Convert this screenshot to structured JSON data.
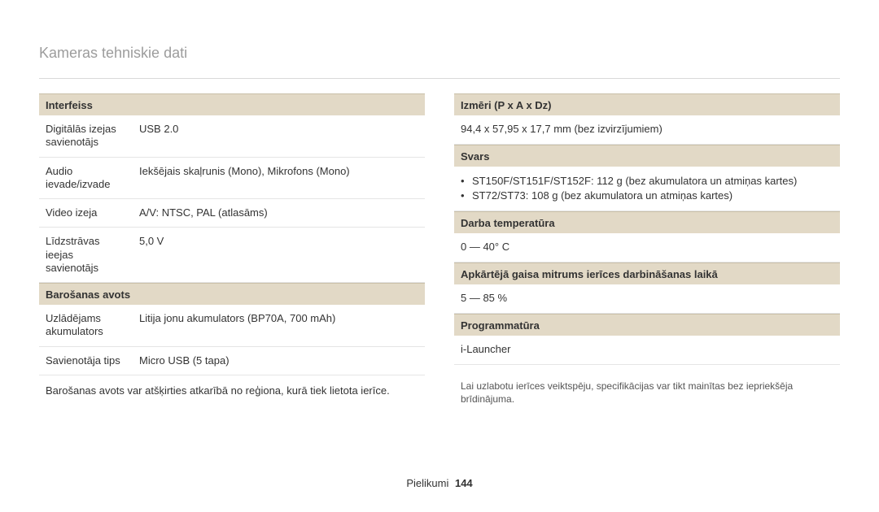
{
  "page": {
    "title": "Kameras tehniskie dati",
    "footer_label": "Pielikumi",
    "footer_page": "144"
  },
  "left": {
    "interface": {
      "header": "Interfeiss",
      "rows": [
        {
          "k": "Digitālās izejas savienotājs",
          "v": "USB 2.0"
        },
        {
          "k": "Audio ievade/izvade",
          "v": "Iekšējais skaļrunis (Mono), Mikrofons (Mono)"
        },
        {
          "k": "Video izeja",
          "v": "A/V: NTSC, PAL (atlasāms)"
        },
        {
          "k": "Līdzstrāvas ieejas savienotājs",
          "v": "5,0 V"
        }
      ]
    },
    "power": {
      "header": "Barošanas avots",
      "rows": [
        {
          "k": "Uzlādējams akumulators",
          "v": "Litija jonu akumulators (BP70A, 700 mAh)"
        },
        {
          "k": "Savienotāja tips",
          "v": "Micro USB (5 tapa)"
        }
      ],
      "note": "Barošanas avots var atšķirties atkarībā no reģiona, kurā tiek lietota ierīce."
    }
  },
  "right": {
    "dims": {
      "header": "Izmēri (P x A x Dz)",
      "value": "94,4 x 57,95 x 17,7 mm (bez izvirzījumiem)"
    },
    "weight": {
      "header": "Svars",
      "bullets": [
        "ST150F/ST151F/ST152F: 112 g (bez akumulatora un atmiņas kartes)",
        "ST72/ST73: 108 g (bez akumulatora un atmiņas kartes)"
      ]
    },
    "temp": {
      "header": "Darba temperatūra",
      "value": "0 — 40° C"
    },
    "humidity": {
      "header": "Apkārtējā gaisa mitrums ierīces darbināšanas laikā",
      "value": "5 — 85 %"
    },
    "software": {
      "header": "Programmatūra",
      "value": "i-Launcher"
    },
    "disclaimer": "Lai uzlabotu ierīces veiktspēju, specifikācijas var tikt mainītas bez iepriekšēja brīdinājuma."
  },
  "style": {
    "header_bg": "#e2d9c6",
    "divider": "#e5e5e5",
    "title_color": "#9c9c9c",
    "font_size_body": 13,
    "font_size_title": 18
  }
}
